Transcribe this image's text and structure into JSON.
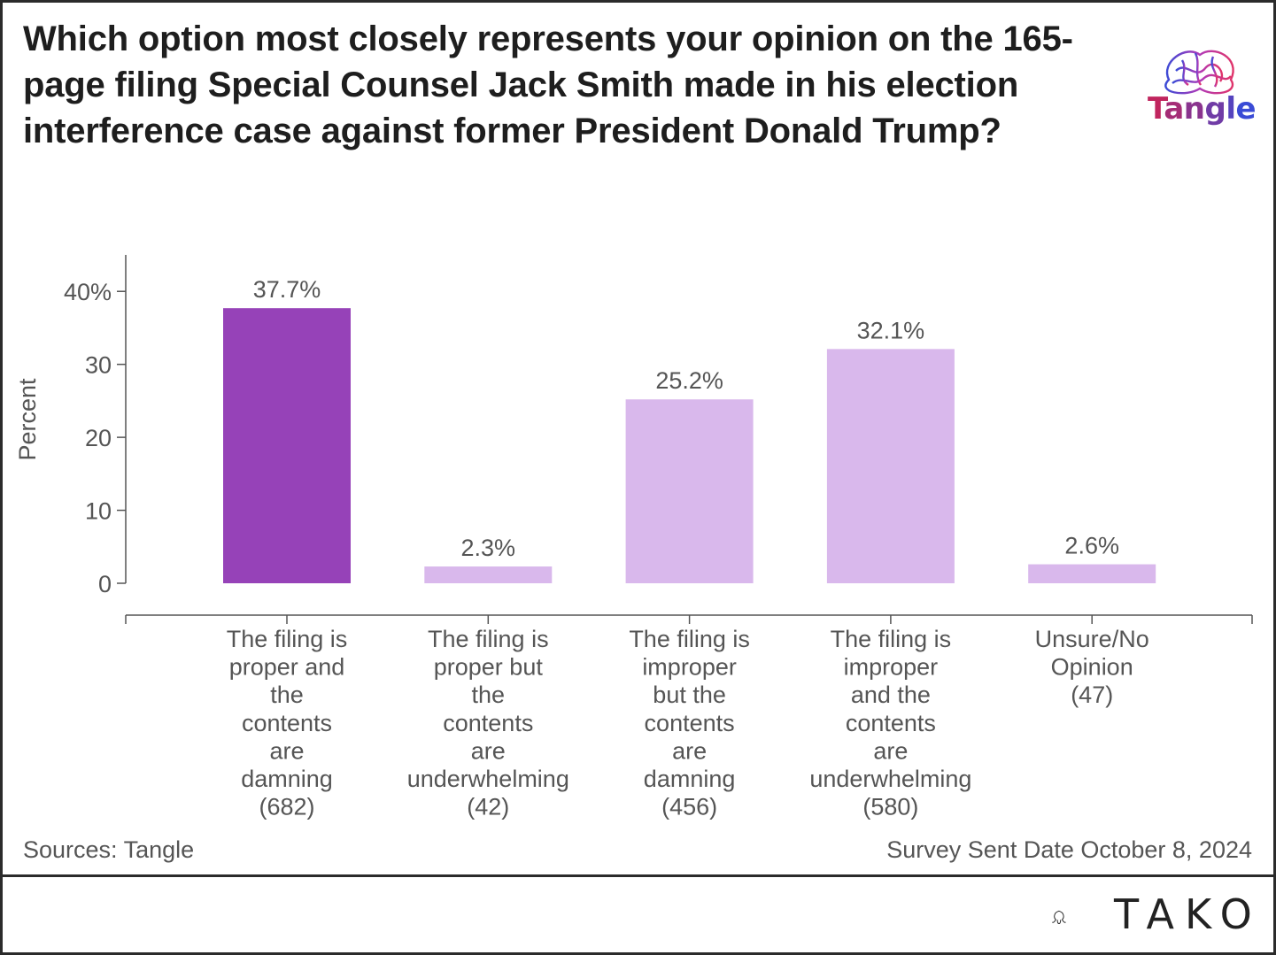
{
  "title": "Which option most closely represents your opinion on the 165-page filing Special Counsel Jack Smith made in his election interference case against former President Donald Trump?",
  "logo": {
    "text": "Tangle",
    "color_start": "#c0255e",
    "color_end": "#3a4bd6"
  },
  "footer": {
    "source": "Sources: Tangle",
    "date": "Survey Sent Date October 8, 2024"
  },
  "brand": {
    "text": "TAKO"
  },
  "colors": {
    "highlight": "#9642b8",
    "normal": "#d9b8ec",
    "axis": "#555555"
  },
  "chart_data": {
    "type": "bar",
    "ylabel": "Percent",
    "ylim": [
      0,
      45
    ],
    "yticks": [
      0,
      10,
      20,
      30,
      40
    ],
    "ytick_labels": [
      "0",
      "10",
      "20",
      "30",
      "40%"
    ],
    "categories": [
      [
        "The filing is",
        "proper and",
        "the",
        "contents",
        "are",
        "damning",
        "(682)"
      ],
      [
        "The filing is",
        "proper but",
        "the",
        "contents",
        "are",
        "underwhelming",
        "(42)"
      ],
      [
        "The filing is",
        "improper",
        "but the",
        "contents",
        "are",
        "damning",
        "(456)"
      ],
      [
        "The filing is",
        "improper",
        "and the",
        "contents",
        "are",
        "underwhelming",
        "(580)"
      ],
      [
        "Unsure/No",
        "Opinion",
        "(47)"
      ]
    ],
    "values": [
      37.7,
      2.3,
      25.2,
      32.1,
      2.6
    ],
    "value_labels": [
      "37.7%",
      "2.3%",
      "25.2%",
      "32.1%",
      "2.6%"
    ],
    "highlight_index": 0
  }
}
